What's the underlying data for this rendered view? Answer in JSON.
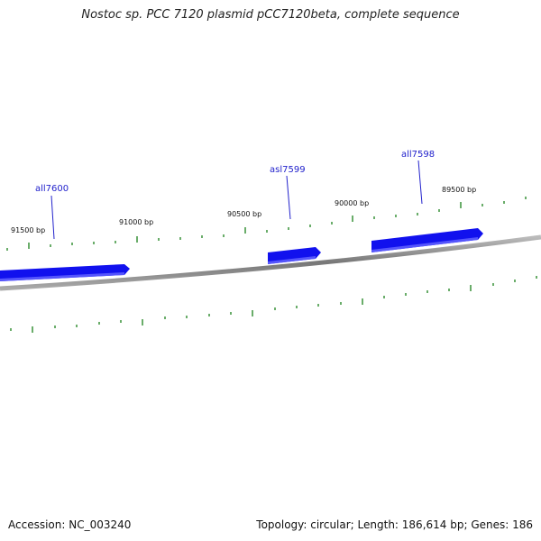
{
  "title": "Nostoc sp. PCC 7120 plasmid pCC7120beta, complete sequence",
  "footer": {
    "accession": "Accession: NC_003240",
    "summary": "Topology: circular; Length: 186,614 bp; Genes: 186"
  },
  "bp_labels": [
    "91500 bp",
    "91000 bp",
    "90500 bp",
    "90000 bp",
    "89500 bp"
  ],
  "genes": [
    {
      "name": "all7600"
    },
    {
      "name": "asl7599"
    },
    {
      "name": "all7598"
    }
  ],
  "colors": {
    "gene": "#1111ee",
    "tick": "#2a8a2a",
    "backbone": "#888888",
    "label": "#2222cc"
  }
}
